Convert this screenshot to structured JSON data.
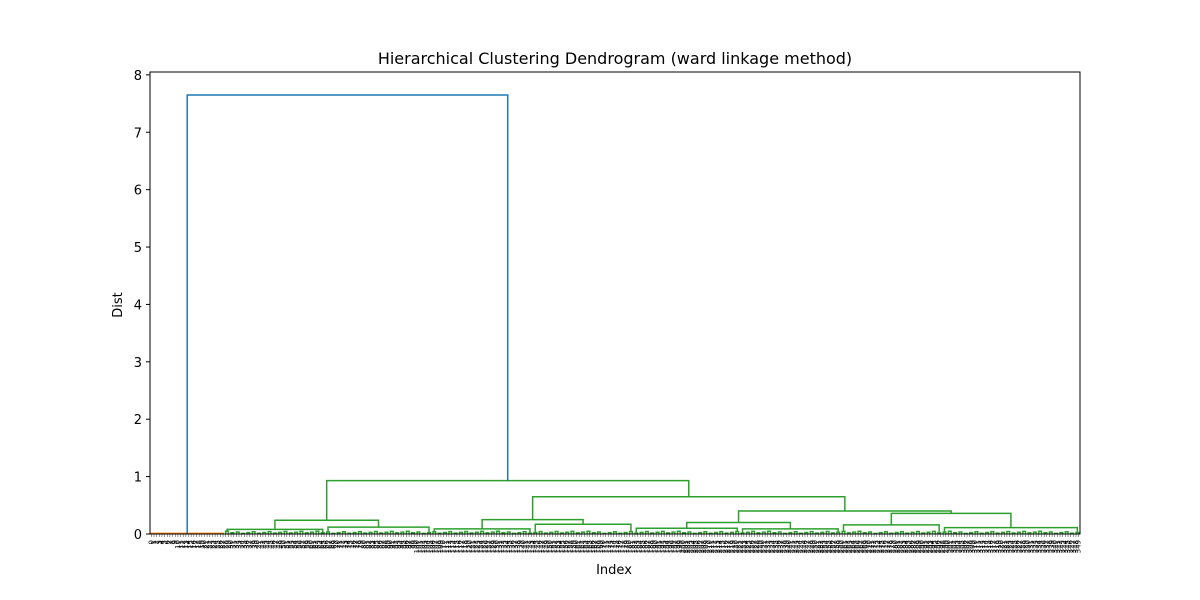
{
  "chart_data": {
    "type": "dendrogram",
    "title": "Hierarchical Clustering Dendrogram (ward linkage method)",
    "xlabel": "Index",
    "ylabel": "Dist",
    "ylim": [
      0,
      8.05
    ],
    "yticks": [
      0,
      1,
      2,
      3,
      4,
      5,
      6,
      7,
      8
    ],
    "colors": {
      "root": "#1f77b4",
      "cluster1": "#ff7f0e",
      "cluster2": "#2ca02c",
      "axis": "#000000"
    },
    "leaf_count": 350,
    "root_merge": {
      "height": 7.65
    },
    "clusters": [
      {
        "name": "cluster1",
        "color": "#ff7f0e",
        "leaf_fraction": 0.08,
        "top_height": 0.01
      },
      {
        "name": "cluster2",
        "color": "#2ca02c",
        "leaf_fraction": 0.92,
        "top_height": 0.93,
        "merges": [
          {
            "height": 0.93,
            "children": [
              "left-group",
              "right-group"
            ]
          },
          {
            "height": 0.65,
            "children": [
              "right-middle",
              "right-end"
            ]
          },
          {
            "height": 0.36,
            "children": [
              "right-end-a",
              "right-end-b"
            ]
          },
          {
            "height": 0.24,
            "children": [
              "left-a",
              "left-b"
            ]
          },
          {
            "height": 0.25,
            "children": [
              "mid-a",
              "mid-b"
            ]
          },
          {
            "height": 0.17,
            "children": [
              "right-a",
              "right-b"
            ]
          }
        ]
      }
    ]
  }
}
